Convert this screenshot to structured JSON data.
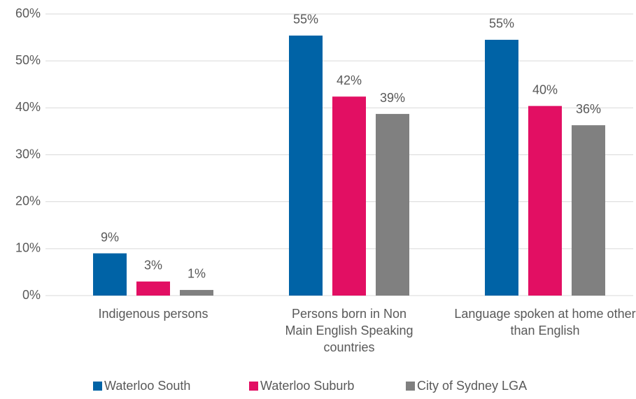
{
  "chart_data": {
    "type": "bar",
    "categories": [
      "Indigenous persons",
      "Persons born in Non Main English Speaking countries",
      "Language spoken at home other than English"
    ],
    "series": [
      {
        "name": "Waterloo South",
        "color": "#0063a6",
        "values": [
          9,
          55.4,
          54.5
        ],
        "value_labels": [
          "9%",
          "55%",
          "55%"
        ]
      },
      {
        "name": "Waterloo Suburb",
        "color": "#e20f63",
        "values": [
          3,
          42.4,
          40.4
        ],
        "value_labels": [
          "3%",
          "42%",
          "40%"
        ]
      },
      {
        "name": "City of Sydney LGA",
        "color": "#808080",
        "values": [
          1.2,
          38.7,
          36.3
        ],
        "value_labels": [
          "1%",
          "39%",
          "36%"
        ]
      }
    ],
    "ylim": [
      0,
      60
    ],
    "yticks": [
      {
        "value": 0,
        "label": "0%"
      },
      {
        "value": 10,
        "label": "10%"
      },
      {
        "value": 20,
        "label": "20%"
      },
      {
        "value": 30,
        "label": "30%"
      },
      {
        "value": 40,
        "label": "40%"
      },
      {
        "value": 50,
        "label": "50%"
      },
      {
        "value": 60,
        "label": "60%"
      }
    ],
    "grid": true,
    "legend": "bottom"
  }
}
